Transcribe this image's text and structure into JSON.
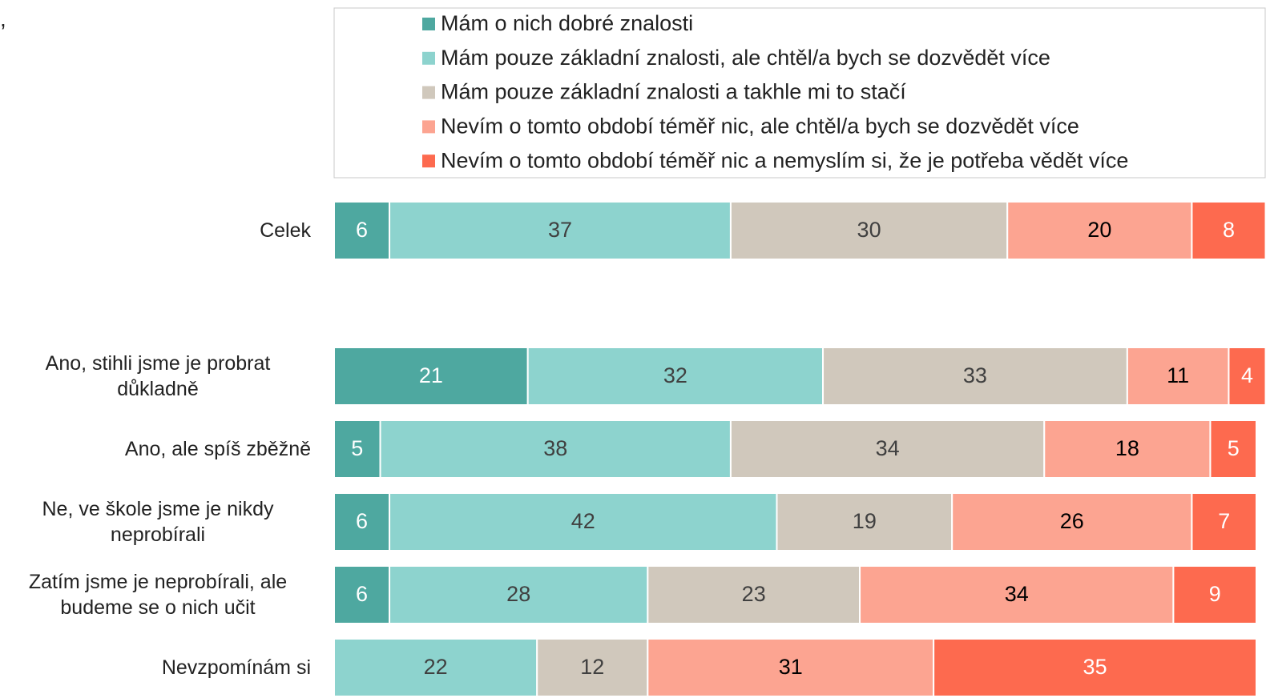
{
  "corner_text": ",",
  "chart_data": {
    "type": "stacked_barh",
    "categories": [
      "Celek",
      null,
      "Ano, stihli jsme je probrat důkladně",
      "Ano, ale spíš zběžně",
      "Ne, ve škole jsme je nikdy neprobírali",
      "Zatím jsme je neprobírali, ale budeme se o nich učit",
      "Nevzpomínám si"
    ],
    "xlim": [
      0,
      100
    ],
    "legend": "top",
    "series": [
      {
        "name": "Mám o nich dobré znalosti",
        "color": "#4ea8a0",
        "label_color": "#ffffff",
        "values": [
          6,
          null,
          21,
          5,
          6,
          6,
          null
        ]
      },
      {
        "name": "Mám pouze základní znalosti, ale chtěl/a bych se dozvědět více",
        "color": "#8dd3ce",
        "label_color": "#404040",
        "values": [
          37,
          null,
          32,
          38,
          42,
          28,
          22
        ]
      },
      {
        "name": "Mám pouze základní znalosti a takhle mi to stačí",
        "color": "#d0c8bc",
        "label_color": "#404040",
        "values": [
          30,
          null,
          33,
          34,
          19,
          23,
          12
        ]
      },
      {
        "name": "Nevím o tomto období téměř nic, ale chtěl/a bych se dozvědět více",
        "color": "#fca491",
        "label_color": "#000000",
        "values": [
          20,
          null,
          11,
          18,
          26,
          34,
          31
        ]
      },
      {
        "name": "Nevím o tomto období téměř nic a nemyslím si, že je potřeba vědět více",
        "color": "#fd6a4f",
        "label_color": "#ffffff",
        "values": [
          8,
          null,
          4,
          5,
          7,
          9,
          35
        ]
      }
    ]
  }
}
